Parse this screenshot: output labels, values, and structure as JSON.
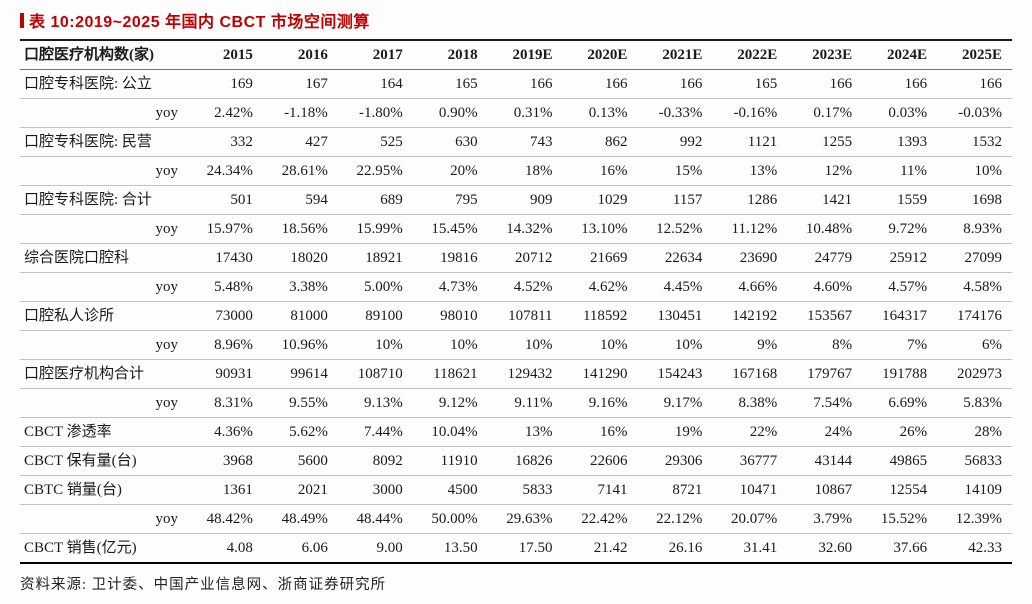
{
  "title": "表 10:2019~2025 年国内 CBCT 市场空间测算",
  "colors": {
    "accent": "#c00000",
    "text": "#1a1a1a"
  },
  "table": {
    "header": [
      "口腔医疗机构数(家)",
      "2015",
      "2016",
      "2017",
      "2018",
      "2019E",
      "2020E",
      "2021E",
      "2022E",
      "2023E",
      "2024E",
      "2025E"
    ],
    "rows": [
      {
        "label": "口腔专科医院: 公立",
        "yoy": false,
        "values": [
          "169",
          "167",
          "164",
          "165",
          "166",
          "166",
          "166",
          "165",
          "166",
          "166",
          "166"
        ]
      },
      {
        "label": "yoy",
        "yoy": true,
        "values": [
          "2.42%",
          "-1.18%",
          "-1.80%",
          "0.90%",
          "0.31%",
          "0.13%",
          "-0.33%",
          "-0.16%",
          "0.17%",
          "0.03%",
          "-0.03%"
        ]
      },
      {
        "label": "口腔专科医院: 民营",
        "yoy": false,
        "values": [
          "332",
          "427",
          "525",
          "630",
          "743",
          "862",
          "992",
          "1121",
          "1255",
          "1393",
          "1532"
        ]
      },
      {
        "label": "yoy",
        "yoy": true,
        "values": [
          "24.34%",
          "28.61%",
          "22.95%",
          "20%",
          "18%",
          "16%",
          "15%",
          "13%",
          "12%",
          "11%",
          "10%"
        ]
      },
      {
        "label": "口腔专科医院: 合计",
        "yoy": false,
        "values": [
          "501",
          "594",
          "689",
          "795",
          "909",
          "1029",
          "1157",
          "1286",
          "1421",
          "1559",
          "1698"
        ]
      },
      {
        "label": "yoy",
        "yoy": true,
        "values": [
          "15.97%",
          "18.56%",
          "15.99%",
          "15.45%",
          "14.32%",
          "13.10%",
          "12.52%",
          "11.12%",
          "10.48%",
          "9.72%",
          "8.93%"
        ]
      },
      {
        "label": "综合医院口腔科",
        "yoy": false,
        "values": [
          "17430",
          "18020",
          "18921",
          "19816",
          "20712",
          "21669",
          "22634",
          "23690",
          "24779",
          "25912",
          "27099"
        ]
      },
      {
        "label": "yoy",
        "yoy": true,
        "values": [
          "5.48%",
          "3.38%",
          "5.00%",
          "4.73%",
          "4.52%",
          "4.62%",
          "4.45%",
          "4.66%",
          "4.60%",
          "4.57%",
          "4.58%"
        ]
      },
      {
        "label": "口腔私人诊所",
        "yoy": false,
        "values": [
          "73000",
          "81000",
          "89100",
          "98010",
          "107811",
          "118592",
          "130451",
          "142192",
          "153567",
          "164317",
          "174176"
        ]
      },
      {
        "label": "yoy",
        "yoy": true,
        "values": [
          "8.96%",
          "10.96%",
          "10%",
          "10%",
          "10%",
          "10%",
          "10%",
          "9%",
          "8%",
          "7%",
          "6%"
        ]
      },
      {
        "label": "口腔医疗机构合计",
        "yoy": false,
        "values": [
          "90931",
          "99614",
          "108710",
          "118621",
          "129432",
          "141290",
          "154243",
          "167168",
          "179767",
          "191788",
          "202973"
        ]
      },
      {
        "label": "yoy",
        "yoy": true,
        "values": [
          "8.31%",
          "9.55%",
          "9.13%",
          "9.12%",
          "9.11%",
          "9.16%",
          "9.17%",
          "8.38%",
          "7.54%",
          "6.69%",
          "5.83%"
        ]
      },
      {
        "label": "CBCT 渗透率",
        "yoy": false,
        "values": [
          "4.36%",
          "5.62%",
          "7.44%",
          "10.04%",
          "13%",
          "16%",
          "19%",
          "22%",
          "24%",
          "26%",
          "28%"
        ]
      },
      {
        "label": "CBCT 保有量(台)",
        "yoy": false,
        "values": [
          "3968",
          "5600",
          "8092",
          "11910",
          "16826",
          "22606",
          "29306",
          "36777",
          "43144",
          "49865",
          "56833"
        ]
      },
      {
        "label": "CBTC 销量(台)",
        "yoy": false,
        "values": [
          "1361",
          "2021",
          "3000",
          "4500",
          "5833",
          "7141",
          "8721",
          "10471",
          "10867",
          "12554",
          "14109"
        ]
      },
      {
        "label": "yoy",
        "yoy": true,
        "values": [
          "48.42%",
          "48.49%",
          "48.44%",
          "50.00%",
          "29.63%",
          "22.42%",
          "22.12%",
          "20.07%",
          "3.79%",
          "15.52%",
          "12.39%"
        ]
      },
      {
        "label": "CBCT 销售(亿元)",
        "yoy": false,
        "values": [
          "4.08",
          "6.06",
          "9.00",
          "13.50",
          "17.50",
          "21.42",
          "26.16",
          "31.41",
          "32.60",
          "37.66",
          "42.33"
        ]
      }
    ]
  },
  "footer": {
    "source": "资料来源: 卫计委、中国产业信息网、浙商证券研究所"
  }
}
